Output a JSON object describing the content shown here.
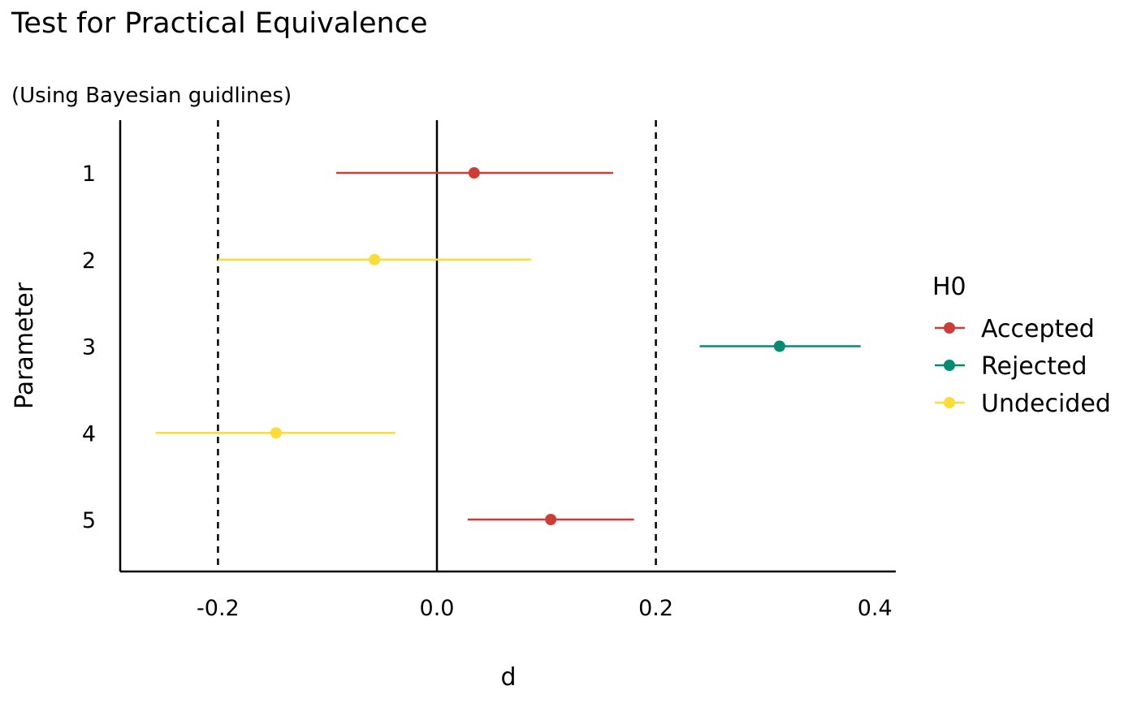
{
  "chart_data": {
    "type": "scatter",
    "title": "Test for Practical Equivalence",
    "subtitle": "(Using Bayesian guidlines)",
    "xlabel": "d",
    "ylabel": "Parameter",
    "xlim": [
      -0.29,
      0.415
    ],
    "x_ticks": [
      "-0.2",
      "0.0",
      "0.2",
      "0.4"
    ],
    "x_tick_values": [
      -0.2,
      0.0,
      0.2,
      0.4
    ],
    "rope": [
      -0.2,
      0.2
    ],
    "zero_line": 0.0,
    "grid": false,
    "legend": {
      "title": "H0",
      "placement": "right",
      "entries": [
        {
          "name": "Accepted",
          "color": "#cc3d38"
        },
        {
          "name": "Rejected",
          "color": "#068a72"
        },
        {
          "name": "Undecided",
          "color": "#fadb38"
        }
      ]
    },
    "points": [
      {
        "parameter": "1",
        "estimate": 0.034,
        "ci_low": -0.092,
        "ci_high": 0.161,
        "h0": "Accepted"
      },
      {
        "parameter": "2",
        "estimate": -0.057,
        "ci_low": -0.2,
        "ci_high": 0.086,
        "h0": "Undecided"
      },
      {
        "parameter": "3",
        "estimate": 0.313,
        "ci_low": 0.24,
        "ci_high": 0.387,
        "h0": "Rejected"
      },
      {
        "parameter": "4",
        "estimate": -0.147,
        "ci_low": -0.257,
        "ci_high": -0.038,
        "h0": "Undecided"
      },
      {
        "parameter": "5",
        "estimate": 0.104,
        "ci_low": 0.028,
        "ci_high": 0.18,
        "h0": "Accepted"
      }
    ]
  }
}
